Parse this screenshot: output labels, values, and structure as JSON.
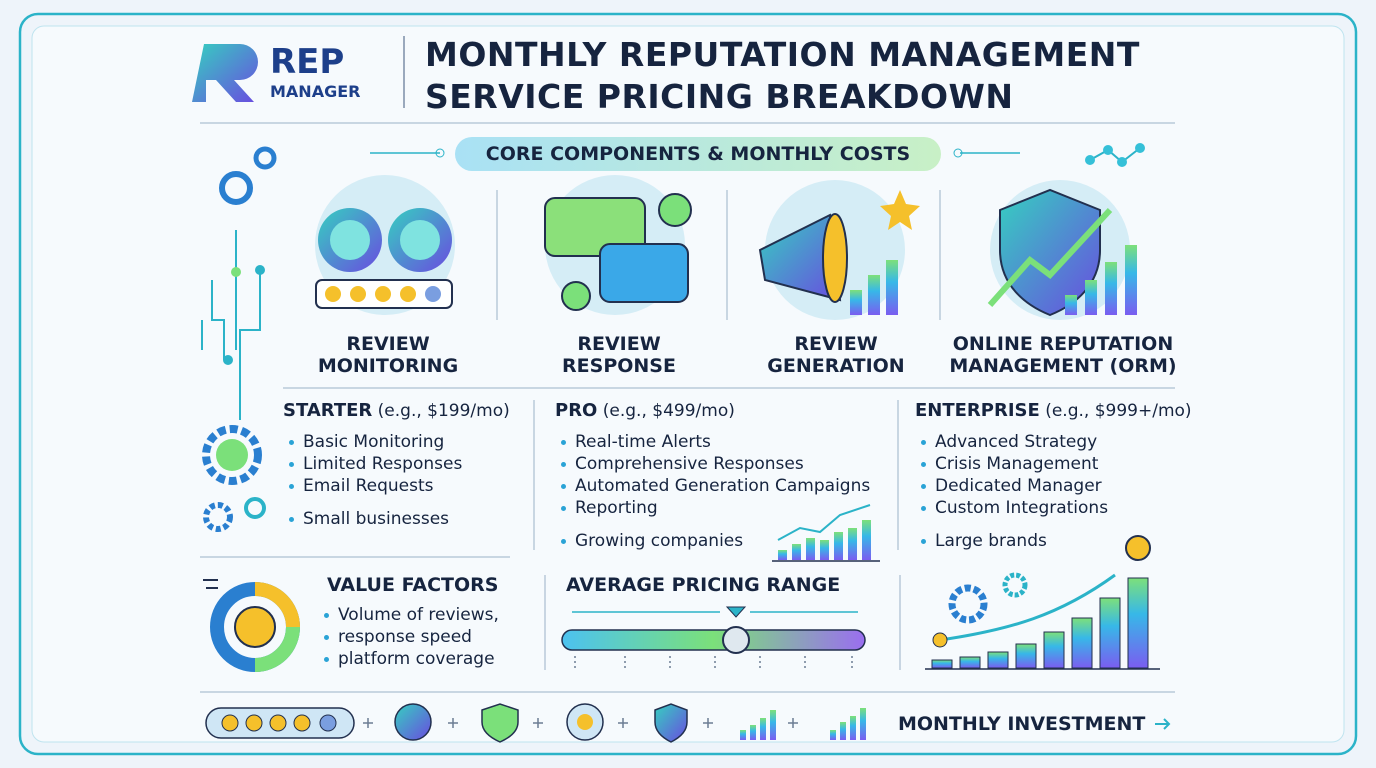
{
  "logo": {
    "word": "REP",
    "sub": "MANAGER"
  },
  "title": [
    "MONTHLY REPUTATION MANAGEMENT",
    "SERVICE PRICING BREAKDOWN"
  ],
  "section_title": "CORE COMPONENTS & MONTHLY COSTS",
  "components": [
    {
      "lines": [
        "REVIEW",
        "MONITORING"
      ]
    },
    {
      "lines": [
        "REVIEW",
        "RESPONSE"
      ]
    },
    {
      "lines": [
        "REVIEW",
        "GENERATION"
      ]
    },
    {
      "lines": [
        "ONLINE REPUTATION",
        "MANAGEMENT (ORM)"
      ]
    }
  ],
  "tiers": [
    {
      "name": "STARTER",
      "price": "(e.g., $199/mo)",
      "features": [
        "Basic Monitoring",
        "Limited Responses",
        "Email Requests"
      ],
      "audience": "Small businesses"
    },
    {
      "name": "PRO",
      "price": "(e.g., $499/mo)",
      "features": [
        "Real-time Alerts",
        "Comprehensive Responses",
        "Automated Generation Campaigns",
        "Reporting"
      ],
      "audience": "Growing companies"
    },
    {
      "name": "ENTERPRISE",
      "price": "(e.g., $999+/mo)",
      "features": [
        "Advanced Strategy",
        "Crisis Management",
        "Dedicated Manager",
        "Custom Integrations"
      ],
      "audience": "Large brands"
    }
  ],
  "value_factors": {
    "title": "VALUE FACTORS",
    "items": [
      "Volume of reviews,",
      "response speed",
      "platform coverage"
    ]
  },
  "pricing_range": {
    "title": "AVERAGE PRICING RANGE"
  },
  "footer": {
    "label": "MONTHLY INVESTMENT"
  }
}
